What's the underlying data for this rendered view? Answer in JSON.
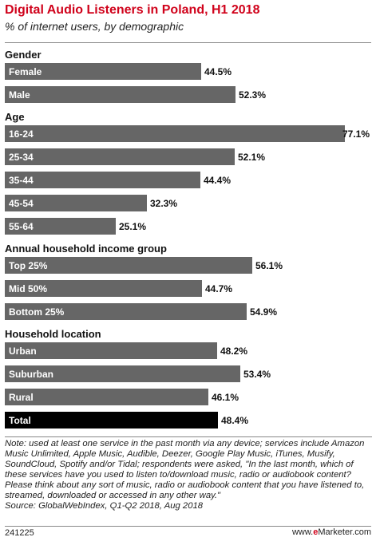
{
  "header": {
    "title": "Digital Audio Listeners in Poland, H1 2018",
    "subtitle": "% of internet users, by demographic"
  },
  "chart_data": {
    "type": "bar",
    "orientation": "horizontal",
    "title": "Digital Audio Listeners in Poland, H1 2018",
    "subtitle": "% of internet users, by demographic",
    "value_suffix": "%",
    "xlim": [
      0,
      77.1
    ],
    "grid": false,
    "groups": [
      {
        "name": "Gender",
        "items": [
          {
            "label": "Female",
            "value": 44.5,
            "display": "44.5%"
          },
          {
            "label": "Male",
            "value": 52.3,
            "display": "52.3%"
          }
        ]
      },
      {
        "name": "Age",
        "items": [
          {
            "label": "16-24",
            "value": 77.1,
            "display": "77.1%"
          },
          {
            "label": "25-34",
            "value": 52.1,
            "display": "52.1%"
          },
          {
            "label": "35-44",
            "value": 44.4,
            "display": "44.4%"
          },
          {
            "label": "45-54",
            "value": 32.3,
            "display": "32.3%"
          },
          {
            "label": "55-64",
            "value": 25.1,
            "display": "25.1%"
          }
        ]
      },
      {
        "name": "Annual household income group",
        "items": [
          {
            "label": "Top 25%",
            "value": 56.1,
            "display": "56.1%"
          },
          {
            "label": "Mid 50%",
            "value": 44.7,
            "display": "44.7%"
          },
          {
            "label": "Bottom 25%",
            "value": 54.9,
            "display": "54.9%"
          }
        ]
      },
      {
        "name": "Household location",
        "items": [
          {
            "label": "Urban",
            "value": 48.2,
            "display": "48.2%"
          },
          {
            "label": "Suburban",
            "value": 53.4,
            "display": "53.4%"
          },
          {
            "label": "Rural",
            "value": 46.1,
            "display": "46.1%"
          },
          {
            "label": "Total",
            "value": 48.4,
            "display": "48.4%",
            "highlight": true
          }
        ]
      }
    ]
  },
  "colors": {
    "bar": "#666666",
    "bar_total": "#000000",
    "title": "#d0021b",
    "label_on_bar": "#ffffff"
  },
  "footer": {
    "note": "Note: used at least one service in the past month via any device; services include Amazon Music Unlimited, Apple Music, Audible, Deezer, Google Play Music, iTunes, Musify, SoundCloud, Spotify and/or Tidal; respondents were asked, \"In the last month, which of these services have you used to listen to/download music, radio or audiobook content? Please think about any sort of music, radio or audiobook content that you have listened to, streamed, downloaded or accessed in any other way.\"\nSource: GlobalWebIndex, Q1-Q2 2018, Aug 2018",
    "chart_id": "241225",
    "brand_prefix": "www.",
    "brand_e": "e",
    "brand_rest": "Marketer.com"
  }
}
